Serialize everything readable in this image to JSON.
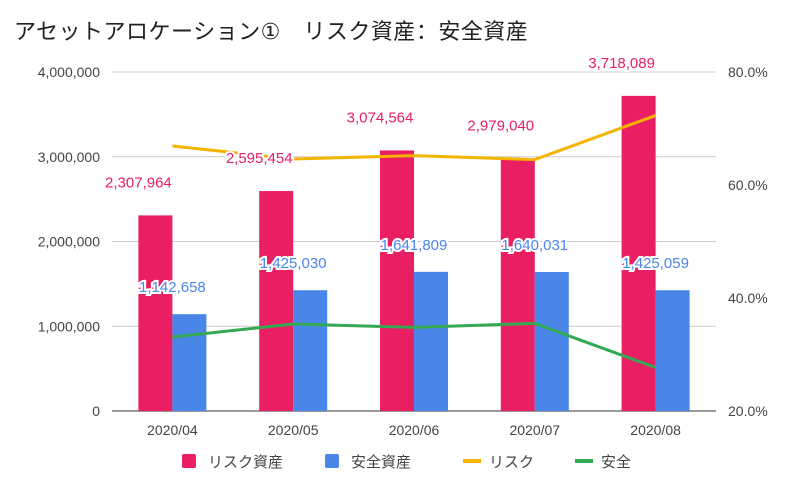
{
  "chart_data": {
    "type": "bar",
    "title": "アセットアロケーション①　リスク資産：安全資産",
    "categories": [
      "2020/04",
      "2020/05",
      "2020/06",
      "2020/07",
      "2020/08"
    ],
    "series": [
      {
        "name": "リスク資産",
        "kind": "bar",
        "axis": "left",
        "color": "#e91e63",
        "values": [
          2307964,
          2595454,
          3074564,
          2979040,
          3718089
        ],
        "labels": [
          "2,307,964",
          "2,595,454",
          "3,074,564",
          "2,979,040",
          "3,718,089"
        ]
      },
      {
        "name": "安全資産",
        "kind": "bar",
        "axis": "left",
        "color": "#4a86e8",
        "values": [
          1142658,
          1425030,
          1641809,
          1640031,
          1425059
        ],
        "labels": [
          "1,142,658",
          "1,425,030",
          "1,641,809",
          "1,640,031",
          "1,425,059"
        ]
      },
      {
        "name": "リスク",
        "kind": "line",
        "axis": "right",
        "color": "#f4b400",
        "values": [
          66.9,
          64.6,
          65.2,
          64.5,
          72.3
        ]
      },
      {
        "name": "安全",
        "kind": "line",
        "axis": "right",
        "color": "#34a853",
        "values": [
          33.1,
          35.4,
          34.8,
          35.5,
          27.7
        ]
      }
    ],
    "y_left": {
      "min": 0,
      "max": 4000000,
      "ticks": [
        0,
        1000000,
        2000000,
        3000000,
        4000000
      ],
      "tick_labels": [
        "0",
        "1,000,000",
        "2,000,000",
        "3,000,000",
        "4,000,000"
      ]
    },
    "y_right": {
      "min": 20,
      "max": 80,
      "ticks": [
        20,
        40,
        60,
        80
      ],
      "tick_labels": [
        "20.0%",
        "40.0%",
        "60.0%",
        "80.0%"
      ]
    },
    "grid": true,
    "legend_position": "bottom"
  }
}
